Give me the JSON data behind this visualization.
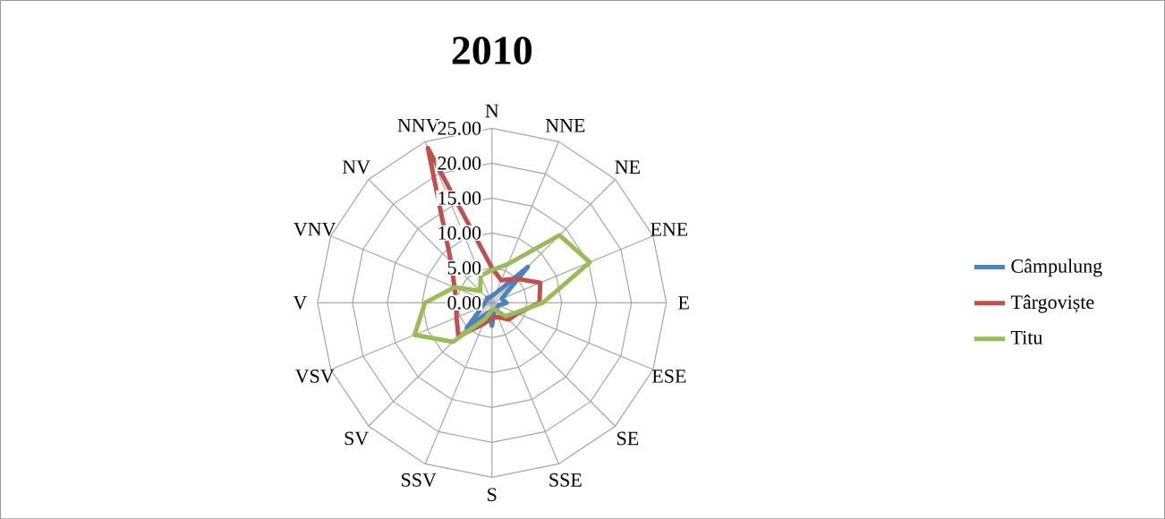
{
  "chart_data": {
    "type": "radar",
    "title": "2010",
    "categories": [
      "N",
      "NNE",
      "NE",
      "ENE",
      "E",
      "ESE",
      "SE",
      "SSE",
      "S",
      "SSV",
      "SV",
      "VSV",
      "V",
      "VNV",
      "NV",
      "NNV"
    ],
    "series": [
      {
        "name": "Câmpulung",
        "color": "#4f81bd",
        "values": [
          1.0,
          1.5,
          7.3,
          1.5,
          2.1,
          1.0,
          1.0,
          1.0,
          3.3,
          1.5,
          5.1,
          1.5,
          1.0,
          0.8,
          1.0,
          0.8
        ]
      },
      {
        "name": "Târgoviște",
        "color": "#c0504d",
        "values": [
          5.0,
          3.5,
          4.9,
          7.5,
          6.8,
          4.0,
          3.4,
          2.2,
          2.2,
          3.3,
          6.8,
          5.5,
          5.1,
          5.8,
          8.3,
          24.0
        ]
      },
      {
        "name": "Titu",
        "color": "#9bbb59",
        "values": [
          4.7,
          6.0,
          13.7,
          15.2,
          7.3,
          3.7,
          2.7,
          1.0,
          1.0,
          2.5,
          7.9,
          12.0,
          9.6,
          5.8,
          2.4,
          4.2
        ]
      }
    ],
    "ylim": [
      0,
      25
    ],
    "yticks": [
      {
        "value": 0,
        "label": "0.00"
      },
      {
        "value": 5,
        "label": "5.00"
      },
      {
        "value": 10,
        "label": "10.00"
      },
      {
        "value": 15,
        "label": "15.00"
      },
      {
        "value": 20,
        "label": "20.00"
      },
      {
        "value": 25,
        "label": "25.00"
      }
    ],
    "grid": true,
    "legend": "right"
  }
}
